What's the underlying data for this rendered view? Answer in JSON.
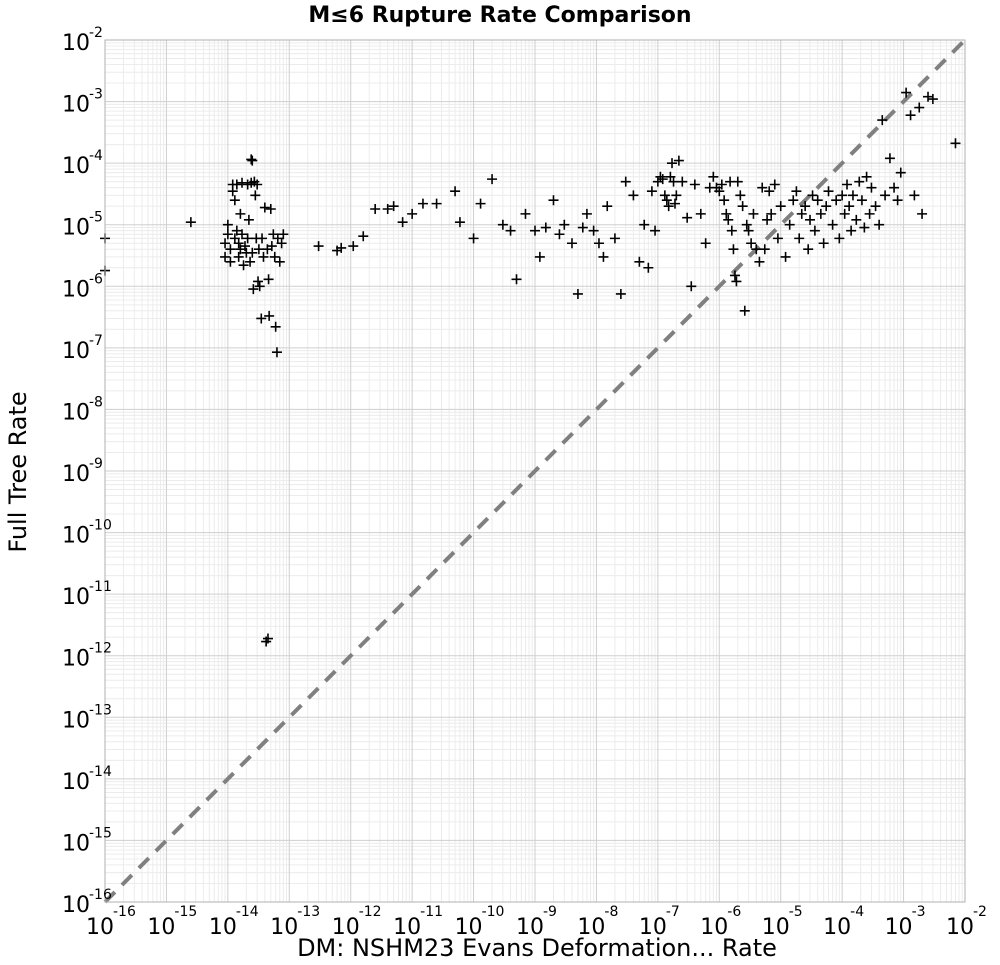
{
  "chart_data": {
    "type": "scatter",
    "title": "M≤6 Rupture Rate Comparison",
    "xlabel": "DM: NSHM23 Evans Deformation... Rate",
    "ylabel": "Full Tree Rate",
    "x_scale": "log",
    "y_scale": "log",
    "xlim": [
      1e-16,
      0.01
    ],
    "ylim": [
      1e-16,
      0.01
    ],
    "grid": true,
    "marker": "plus",
    "marker_color": "#000000",
    "reference_line": {
      "type": "y=x",
      "style": "dashed",
      "color": "#808080"
    },
    "tick_labels": {
      "x": [
        {
          "base": "10",
          "exp": "-16"
        },
        {
          "base": "10",
          "exp": "-15"
        },
        {
          "base": "10",
          "exp": "-14"
        },
        {
          "base": "10",
          "exp": "-13"
        },
        {
          "base": "10",
          "exp": "-12"
        },
        {
          "base": "10",
          "exp": "-11"
        },
        {
          "base": "10",
          "exp": "-10"
        },
        {
          "base": "10",
          "exp": "-9"
        },
        {
          "base": "10",
          "exp": "-8"
        },
        {
          "base": "10",
          "exp": "-7"
        },
        {
          "base": "10",
          "exp": "-6"
        },
        {
          "base": "10",
          "exp": "-5"
        },
        {
          "base": "10",
          "exp": "-4"
        },
        {
          "base": "10",
          "exp": "-3"
        },
        {
          "base": "10",
          "exp": "-2"
        }
      ],
      "y": [
        {
          "base": "10",
          "exp": "-16"
        },
        {
          "base": "10",
          "exp": "-15"
        },
        {
          "base": "10",
          "exp": "-14"
        },
        {
          "base": "10",
          "exp": "-13"
        },
        {
          "base": "10",
          "exp": "-12"
        },
        {
          "base": "10",
          "exp": "-11"
        },
        {
          "base": "10",
          "exp": "-10"
        },
        {
          "base": "10",
          "exp": "-9"
        },
        {
          "base": "10",
          "exp": "-8"
        },
        {
          "base": "10",
          "exp": "-7"
        },
        {
          "base": "10",
          "exp": "-6"
        },
        {
          "base": "10",
          "exp": "-5"
        },
        {
          "base": "10",
          "exp": "-4"
        },
        {
          "base": "10",
          "exp": "-3"
        },
        {
          "base": "10",
          "exp": "-2"
        }
      ]
    },
    "points": [
      [
        1e-16,
        6e-06
      ],
      [
        1e-16,
        1.8e-06
      ],
      [
        2.5e-15,
        1.1e-05
      ],
      [
        9e-15,
        3e-06
      ],
      [
        9e-15,
        5e-06
      ],
      [
        1e-14,
        7e-06
      ],
      [
        1e-14,
        1e-05
      ],
      [
        1.1e-14,
        4e-06
      ],
      [
        1.1e-14,
        2.5e-06
      ],
      [
        1.2e-14,
        4.5e-05
      ],
      [
        1.2e-14,
        3.5e-05
      ],
      [
        1.3e-14,
        2.5e-05
      ],
      [
        1.3e-14,
        6e-06
      ],
      [
        1.4e-14,
        4.5e-05
      ],
      [
        1.4e-14,
        8e-06
      ],
      [
        1.5e-14,
        5e-06
      ],
      [
        1.5e-14,
        3e-06
      ],
      [
        1.6e-14,
        1.5e-05
      ],
      [
        1.6e-14,
        4e-06
      ],
      [
        1.7e-14,
        4.8e-05
      ],
      [
        1.7e-14,
        7e-06
      ],
      [
        1.8e-14,
        2.2e-06
      ],
      [
        1.9e-14,
        4.5e-06
      ],
      [
        2e-14,
        3.5e-06
      ],
      [
        2.1e-14,
        4.5e-05
      ],
      [
        2.1e-14,
        6e-06
      ],
      [
        2.2e-14,
        1.2e-05
      ],
      [
        2.3e-14,
        2.5e-06
      ],
      [
        2.4e-14,
        0.000115
      ],
      [
        2.4e-14,
        4.8e-05
      ],
      [
        2.5e-14,
        0.00011
      ],
      [
        2.5e-14,
        3.5e-06
      ],
      [
        2.6e-14,
        9e-07
      ],
      [
        2.7e-14,
        5e-05
      ],
      [
        2.8e-14,
        3e-05
      ],
      [
        2.9e-14,
        6e-06
      ],
      [
        3e-14,
        4.5e-05
      ],
      [
        3.1e-14,
        1.2e-06
      ],
      [
        3.2e-14,
        4e-06
      ],
      [
        3.3e-14,
        1e-06
      ],
      [
        3.5e-14,
        3e-07
      ],
      [
        3.6e-14,
        6e-06
      ],
      [
        3.8e-14,
        3e-06
      ],
      [
        4e-14,
        1.9e-05
      ],
      [
        4.2e-14,
        1.7e-12
      ],
      [
        4.4e-14,
        4e-06
      ],
      [
        4.5e-14,
        1.9e-12
      ],
      [
        4.6e-14,
        1.3e-06
      ],
      [
        4.7e-14,
        3.3e-07
      ],
      [
        5e-14,
        1.8e-05
      ],
      [
        5.2e-14,
        4.5e-06
      ],
      [
        5.5e-14,
        7e-06
      ],
      [
        5.8e-14,
        3e-06
      ],
      [
        6e-14,
        2.2e-07
      ],
      [
        6.3e-14,
        8.5e-08
      ],
      [
        6.5e-14,
        6e-06
      ],
      [
        7e-14,
        2.5e-06
      ],
      [
        7.5e-14,
        5e-06
      ],
      [
        8e-14,
        7e-06
      ],
      [
        3e-13,
        4.5e-06
      ],
      [
        6e-13,
        3.8e-06
      ],
      [
        7e-13,
        4.2e-06
      ],
      [
        1.1e-12,
        4.5e-06
      ],
      [
        1.6e-12,
        6.5e-06
      ],
      [
        2.5e-12,
        1.8e-05
      ],
      [
        4e-12,
        1.8e-05
      ],
      [
        5e-12,
        2e-05
      ],
      [
        7e-12,
        1.1e-05
      ],
      [
        1e-11,
        1.5e-05
      ],
      [
        1.5e-11,
        2.2e-05
      ],
      [
        2.5e-11,
        2.2e-05
      ],
      [
        5e-11,
        3.5e-05
      ],
      [
        6e-11,
        1.1e-05
      ],
      [
        1e-10,
        6e-06
      ],
      [
        1.3e-10,
        2.2e-05
      ],
      [
        2e-10,
        5.5e-05
      ],
      [
        3e-10,
        1e-05
      ],
      [
        4e-10,
        8e-06
      ],
      [
        5e-10,
        1.3e-06
      ],
      [
        7e-10,
        1.5e-05
      ],
      [
        1e-09,
        8e-06
      ],
      [
        1.2e-09,
        3e-06
      ],
      [
        1.5e-09,
        9e-06
      ],
      [
        2e-09,
        2.5e-05
      ],
      [
        2.5e-09,
        7e-06
      ],
      [
        3e-09,
        1e-05
      ],
      [
        4e-09,
        5e-06
      ],
      [
        5e-09,
        7.5e-07
      ],
      [
        6e-09,
        9e-06
      ],
      [
        7e-09,
        1.5e-05
      ],
      [
        9e-09,
        8e-06
      ],
      [
        1.1e-08,
        5e-06
      ],
      [
        1.3e-08,
        3e-06
      ],
      [
        1.5e-08,
        2e-05
      ],
      [
        2e-08,
        6e-06
      ],
      [
        2.5e-08,
        7.5e-07
      ],
      [
        3e-08,
        5e-05
      ],
      [
        4e-08,
        3e-05
      ],
      [
        5e-08,
        2.5e-06
      ],
      [
        6e-08,
        1e-05
      ],
      [
        7e-08,
        2e-06
      ],
      [
        8e-08,
        3.5e-05
      ],
      [
        9e-08,
        8e-06
      ],
      [
        1e-07,
        5e-05
      ],
      [
        1.1e-07,
        6e-05
      ],
      [
        1.2e-07,
        5.5e-05
      ],
      [
        1.3e-07,
        3e-05
      ],
      [
        1.4e-07,
        2.5e-05
      ],
      [
        1.5e-07,
        2e-05
      ],
      [
        1.6e-07,
        6e-05
      ],
      [
        1.7e-07,
        0.0001
      ],
      [
        1.8e-07,
        5e-05
      ],
      [
        1.9e-07,
        2.2e-05
      ],
      [
        2e-07,
        3e-05
      ],
      [
        2.2e-07,
        0.00011
      ],
      [
        2.5e-07,
        5e-05
      ],
      [
        3e-07,
        1.3e-05
      ],
      [
        3.5e-07,
        1e-06
      ],
      [
        4e-07,
        4.5e-05
      ],
      [
        5e-07,
        1.5e-05
      ],
      [
        6e-07,
        5e-06
      ],
      [
        7e-07,
        4e-05
      ],
      [
        8e-07,
        6e-05
      ],
      [
        9e-07,
        4e-05
      ],
      [
        1e-06,
        3.5e-05
      ],
      [
        1.1e-06,
        4.5e-05
      ],
      [
        1.2e-06,
        2.5e-05
      ],
      [
        1.3e-06,
        1.5e-05
      ],
      [
        1.4e-06,
        1.2e-05
      ],
      [
        1.5e-06,
        5e-05
      ],
      [
        1.6e-06,
        8e-06
      ],
      [
        1.7e-06,
        4e-06
      ],
      [
        1.8e-06,
        1.5e-06
      ],
      [
        1.9e-06,
        1.2e-06
      ],
      [
        2e-06,
        5e-05
      ],
      [
        2.2e-06,
        3e-05
      ],
      [
        2.4e-06,
        2e-05
      ],
      [
        2.6e-06,
        4e-07
      ],
      [
        2.8e-06,
        1e-05
      ],
      [
        3e-06,
        8e-06
      ],
      [
        3.3e-06,
        5e-06
      ],
      [
        3.6e-06,
        1.5e-05
      ],
      [
        4e-06,
        4e-06
      ],
      [
        4.5e-06,
        2.5e-06
      ],
      [
        5e-06,
        4e-05
      ],
      [
        5.5e-06,
        4e-06
      ],
      [
        6e-06,
        1.2e-05
      ],
      [
        6.5e-06,
        3.5e-05
      ],
      [
        7e-06,
        1.5e-05
      ],
      [
        8e-06,
        4.5e-05
      ],
      [
        9e-06,
        6e-06
      ],
      [
        1e-05,
        2e-05
      ],
      [
        1.2e-05,
        3e-06
      ],
      [
        1.4e-05,
        1e-05
      ],
      [
        1.6e-05,
        2.5e-05
      ],
      [
        1.8e-05,
        3.5e-05
      ],
      [
        2e-05,
        6e-06
      ],
      [
        2.2e-05,
        1.5e-05
      ],
      [
        2.5e-05,
        2e-05
      ],
      [
        2.8e-05,
        4e-06
      ],
      [
        3e-05,
        1.2e-05
      ],
      [
        3.3e-05,
        3e-05
      ],
      [
        3.6e-05,
        8e-06
      ],
      [
        4e-05,
        2.5e-05
      ],
      [
        4.5e-05,
        1.5e-05
      ],
      [
        5e-05,
        5e-06
      ],
      [
        5.5e-05,
        2e-05
      ],
      [
        6e-05,
        3.5e-05
      ],
      [
        7e-05,
        1e-05
      ],
      [
        8e-05,
        2.5e-05
      ],
      [
        9e-05,
        6e-06
      ],
      [
        0.0001,
        3e-05
      ],
      [
        0.00011,
        1.5e-05
      ],
      [
        0.00012,
        4.5e-05
      ],
      [
        0.00013,
        2e-05
      ],
      [
        0.00014,
        8e-06
      ],
      [
        0.00015,
        3e-05
      ],
      [
        0.00017,
        1.2e-05
      ],
      [
        0.00019,
        5e-05
      ],
      [
        0.00021,
        2.5e-05
      ],
      [
        0.00023,
        9e-06
      ],
      [
        0.00025,
        6e-05
      ],
      [
        0.00028,
        1.5e-05
      ],
      [
        0.0003,
        4e-05
      ],
      [
        0.00035,
        2e-05
      ],
      [
        0.0004,
        1e-05
      ],
      [
        0.00045,
        0.0005
      ],
      [
        0.0005,
        3e-05
      ],
      [
        0.0006,
        0.00012
      ],
      [
        0.0007,
        4e-05
      ],
      [
        0.0008,
        2.5e-05
      ],
      [
        0.0009,
        7e-05
      ],
      [
        0.0011,
        0.0014
      ],
      [
        0.0013,
        0.0006
      ],
      [
        0.0015,
        3e-05
      ],
      [
        0.0018,
        0.0008
      ],
      [
        0.002,
        1.5e-05
      ],
      [
        0.0025,
        0.0012
      ],
      [
        0.003,
        0.0011
      ],
      [
        0.007,
        0.00021
      ]
    ]
  }
}
